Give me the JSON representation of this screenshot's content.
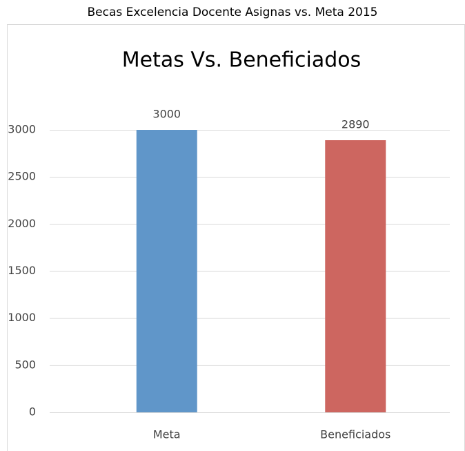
{
  "page_title": "Becas Excelencia Docente Asignas vs. Meta 2015",
  "chart_data": {
    "type": "bar",
    "title": "Metas Vs. Beneficiados",
    "categories": [
      "Meta",
      "Beneficiados"
    ],
    "values": [
      3000,
      2890
    ],
    "colors": [
      "#6096c9",
      "#cd6660"
    ],
    "ylim": [
      0,
      3000
    ],
    "yticks": [
      0,
      500,
      1000,
      1500,
      2000,
      2500,
      3000
    ],
    "grid": true
  }
}
